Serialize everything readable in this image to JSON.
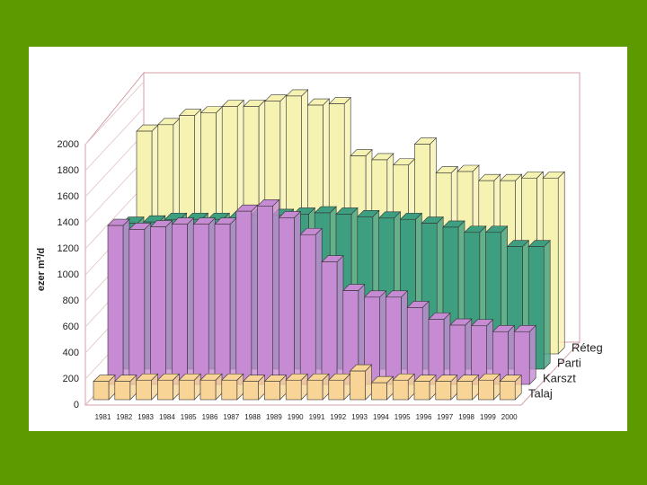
{
  "chart_data": {
    "type": "bar3d",
    "y_label": "ezer m³/d",
    "categories": [
      "1981",
      "1982",
      "1983",
      "1984",
      "1985",
      "1986",
      "1987",
      "1988",
      "1989",
      "1990",
      "1991",
      "1992",
      "1993",
      "1994",
      "1995",
      "1996",
      "1997",
      "1998",
      "1999",
      "2000"
    ],
    "ylim": [
      0,
      2000
    ],
    "yticks": [
      0,
      200,
      400,
      600,
      800,
      1000,
      1200,
      1400,
      1600,
      1800,
      2000
    ],
    "series": [
      {
        "name": "Talaj",
        "color": "#f8d596",
        "values": [
          140,
          140,
          150,
          150,
          150,
          150,
          150,
          140,
          140,
          150,
          150,
          150,
          220,
          130,
          150,
          140,
          140,
          140,
          150,
          140
        ]
      },
      {
        "name": "Karszt",
        "color": "#c78bd4",
        "values": [
          1220,
          1190,
          1210,
          1230,
          1230,
          1230,
          1330,
          1370,
          1280,
          1150,
          940,
          720,
          670,
          670,
          590,
          500,
          455,
          450,
          405,
          405
        ]
      },
      {
        "name": "Parti",
        "color": "#3e9f80",
        "values": [
          1120,
          1130,
          1150,
          1150,
          1150,
          1160,
          1180,
          1180,
          1190,
          1200,
          1190,
          1170,
          1160,
          1150,
          1120,
          1090,
          1050,
          1050,
          940,
          940
        ]
      },
      {
        "name": "Réteg",
        "color": "#f6f2b2",
        "values": [
          1710,
          1760,
          1830,
          1850,
          1900,
          1900,
          1940,
          1980,
          1910,
          1920,
          1520,
          1490,
          1450,
          1610,
          1390,
          1400,
          1330,
          1330,
          1350,
          1350
        ]
      }
    ]
  }
}
